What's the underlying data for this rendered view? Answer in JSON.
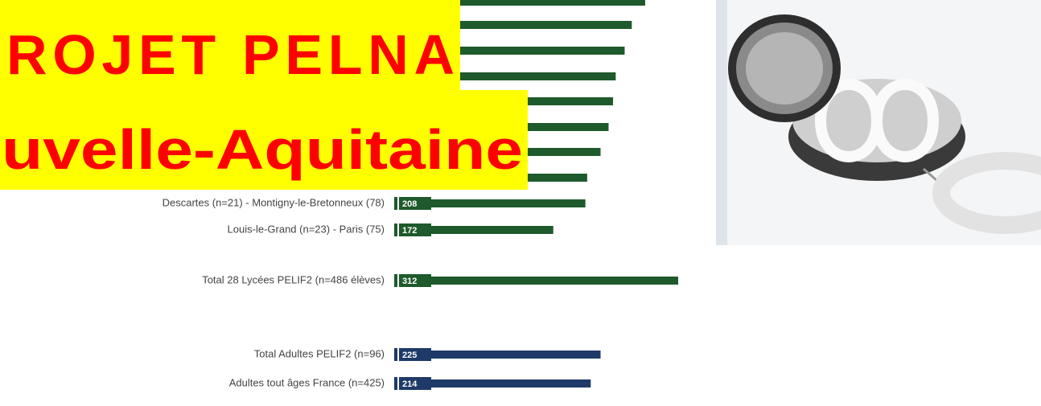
{
  "chart_data": {
    "type": "bar",
    "orientation": "horizontal",
    "categories": [
      null,
      null,
      null,
      null,
      null,
      null,
      null,
      null,
      "Descartes (n=21) - Montigny-le-Bretonneux (78)",
      "Louis-le-Grand (n=23) - Paris (75)",
      "Total 28 Lycées PELIF2 (n=486 élèves)",
      "Total Adultes PELIF2 (n=96)",
      "Adultes tout âges France (n=425)"
    ],
    "values": [
      275,
      260,
      252,
      242,
      239,
      234,
      225,
      210,
      208,
      172,
      312,
      225,
      214
    ],
    "colors": [
      "#1e5a2b",
      "#1e5a2b",
      "#1e5a2b",
      "#1e5a2b",
      "#1e5a2b",
      "#1e5a2b",
      "#1e5a2b",
      "#1e5a2b",
      "#1e5a2b",
      "#1e5a2b",
      "#1e5a2b",
      "#1f3a68",
      "#1f3a68"
    ],
    "xlim": [
      0,
      312
    ]
  },
  "banner": {
    "lines": [
      "ROJET PELNA",
      "uvelle-Aquitaine"
    ]
  }
}
